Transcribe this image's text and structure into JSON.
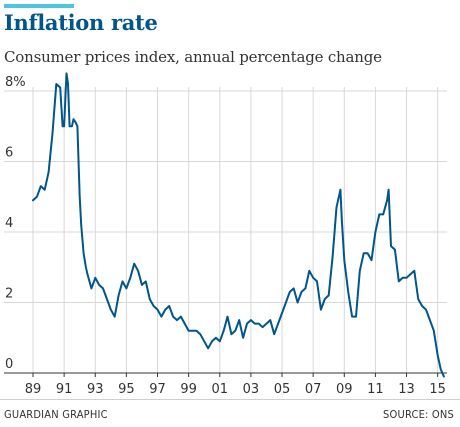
{
  "header": {
    "title": "Inflation rate",
    "subtitle": "Consumer prices index, annual percentage change"
  },
  "footer": {
    "credit": "GUARDIAN GRAPHIC",
    "source": "SOURCE: ONS"
  },
  "colors": {
    "accent": "#4bc6df",
    "title": "#005689",
    "line": "#005689",
    "grid": "#d8d8d8",
    "axis": "#333333"
  },
  "chart_data": {
    "type": "line",
    "title": "Inflation rate",
    "subtitle": "Consumer prices index, annual percentage change",
    "xlabel": "",
    "ylabel": "",
    "xlim": [
      1989,
      2015.6
    ],
    "ylim": [
      0,
      8
    ],
    "grid": true,
    "x_ticks": [
      1989,
      1991,
      1993,
      1995,
      1997,
      1999,
      2001,
      2003,
      2005,
      2007,
      2009,
      2011,
      2013,
      2015
    ],
    "x_tick_labels": [
      "89",
      "91",
      "93",
      "95",
      "97",
      "99",
      "01",
      "03",
      "05",
      "07",
      "09",
      "11",
      "13",
      "15"
    ],
    "y_ticks": [
      0,
      2,
      4,
      6,
      8
    ],
    "y_tick_labels": [
      "0",
      "2",
      "4",
      "6",
      "8%"
    ],
    "series": [
      {
        "name": "",
        "x": [
          1989.0,
          1989.25,
          1989.5,
          1989.75,
          1990.0,
          1990.25,
          1990.5,
          1990.75,
          1990.9,
          1991.0,
          1991.15,
          1991.25,
          1991.35,
          1991.5,
          1991.6,
          1991.75,
          1991.85,
          1992.0,
          1992.1,
          1992.25,
          1992.4,
          1992.5,
          1992.75,
          1993.0,
          1993.25,
          1993.5,
          1993.75,
          1994.0,
          1994.25,
          1994.5,
          1994.75,
          1995.0,
          1995.25,
          1995.5,
          1995.75,
          1996.0,
          1996.25,
          1996.5,
          1996.75,
          1997.0,
          1997.25,
          1997.5,
          1997.75,
          1998.0,
          1998.25,
          1998.5,
          1998.75,
          1999.0,
          1999.25,
          1999.5,
          1999.75,
          2000.0,
          2000.25,
          2000.5,
          2000.75,
          2001.0,
          2001.25,
          2001.5,
          2001.75,
          2002.0,
          2002.25,
          2002.5,
          2002.75,
          2003.0,
          2003.25,
          2003.5,
          2003.75,
          2004.0,
          2004.25,
          2004.5,
          2004.75,
          2005.0,
          2005.25,
          2005.5,
          2005.75,
          2006.0,
          2006.25,
          2006.5,
          2006.75,
          2007.0,
          2007.25,
          2007.5,
          2007.75,
          2008.0,
          2008.25,
          2008.5,
          2008.75,
          2008.85,
          2009.0,
          2009.25,
          2009.5,
          2009.75,
          2010.0,
          2010.25,
          2010.5,
          2010.75,
          2011.0,
          2011.25,
          2011.5,
          2011.75,
          2011.85,
          2012.0,
          2012.25,
          2012.5,
          2012.75,
          2013.0,
          2013.25,
          2013.5,
          2013.75,
          2014.0,
          2014.25,
          2014.5,
          2014.75,
          2015.0,
          2015.2,
          2015.4
        ],
        "values": [
          4.9,
          5.0,
          5.3,
          5.2,
          5.7,
          6.8,
          8.2,
          8.1,
          7.0,
          7.0,
          8.5,
          8.2,
          7.0,
          7.0,
          7.2,
          7.1,
          7.0,
          5.0,
          4.2,
          3.4,
          3.0,
          2.8,
          2.4,
          2.7,
          2.5,
          2.4,
          2.1,
          1.8,
          1.6,
          2.2,
          2.6,
          2.4,
          2.7,
          3.1,
          2.9,
          2.5,
          2.6,
          2.1,
          1.9,
          1.8,
          1.6,
          1.8,
          1.9,
          1.6,
          1.5,
          1.6,
          1.4,
          1.2,
          1.2,
          1.2,
          1.1,
          0.9,
          0.7,
          0.9,
          1.0,
          0.9,
          1.2,
          1.6,
          1.1,
          1.2,
          1.5,
          1.0,
          1.4,
          1.5,
          1.4,
          1.4,
          1.3,
          1.4,
          1.5,
          1.1,
          1.4,
          1.7,
          2.0,
          2.3,
          2.4,
          2.0,
          2.3,
          2.4,
          2.9,
          2.7,
          2.6,
          1.8,
          2.1,
          2.2,
          3.3,
          4.7,
          5.2,
          4.3,
          3.2,
          2.3,
          1.6,
          1.6,
          2.9,
          3.4,
          3.4,
          3.2,
          4.0,
          4.5,
          4.5,
          4.9,
          5.2,
          3.6,
          3.5,
          2.6,
          2.7,
          2.7,
          2.8,
          2.9,
          2.1,
          1.9,
          1.8,
          1.5,
          1.2,
          0.5,
          0.1,
          -0.1
        ]
      }
    ]
  }
}
